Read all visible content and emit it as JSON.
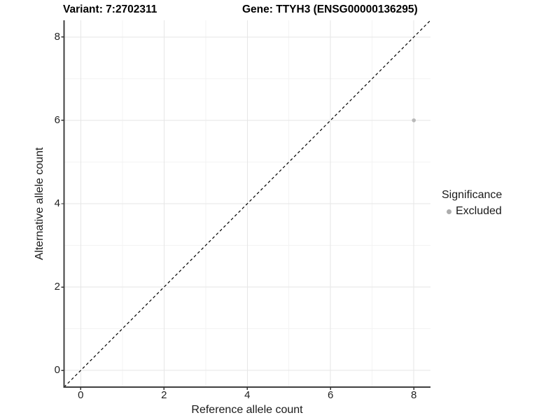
{
  "colors": {
    "background": "#ffffff",
    "grid_major": "#e6e6e6",
    "grid_minor": "#f3f3f3",
    "axis_line": "#404040",
    "tick_mark": "#333333",
    "text": "#1a1a1a",
    "reference_line": "#000000"
  },
  "chart_data": {
    "type": "scatter",
    "title_left": "Variant: 7:2702311",
    "title_right": "Gene: TTYH3 (ENSG00000136295)",
    "xlabel": "Reference allele count",
    "ylabel": "Alternative allele count",
    "xlim": [
      -0.4,
      8.4
    ],
    "ylim": [
      -0.4,
      8.4
    ],
    "x_ticks": [
      0,
      2,
      4,
      6,
      8
    ],
    "y_ticks": [
      0,
      2,
      4,
      6,
      8
    ],
    "x_minor_ticks": [
      1,
      3,
      5,
      7
    ],
    "y_minor_ticks": [
      1,
      3,
      5,
      7
    ],
    "grid": true,
    "reference_line": {
      "style": "dashed",
      "slope": 1,
      "intercept": 0
    },
    "series": [
      {
        "name": "Excluded",
        "color": "#b9b9b9",
        "points": [
          {
            "x": 8,
            "y": 6
          }
        ]
      }
    ],
    "legend": {
      "title": "Significance",
      "position": "right",
      "entries": [
        {
          "label": "Excluded",
          "color": "#adadad"
        }
      ]
    }
  }
}
